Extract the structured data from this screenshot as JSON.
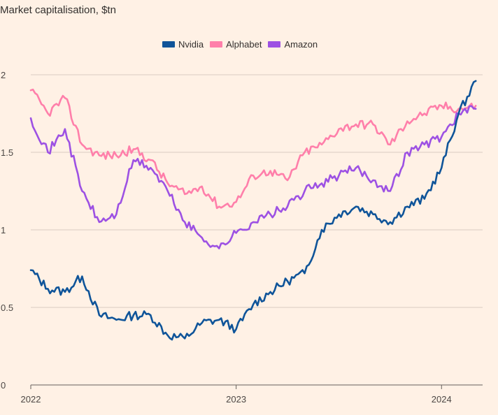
{
  "chart_data": {
    "type": "line",
    "title": "Market capitalisation, $tn",
    "xlabel": "",
    "ylabel": "",
    "ylim": [
      0,
      2
    ],
    "y_ticks": [
      {
        "value": 0,
        "label": "0"
      },
      {
        "value": 0.5,
        "label": "0.5"
      },
      {
        "value": 1,
        "label": "1"
      },
      {
        "value": 1.5,
        "label": "1.5"
      },
      {
        "value": 2,
        "label": "2"
      }
    ],
    "x_ticks": [
      {
        "value": "2022-01",
        "label": "2022"
      },
      {
        "value": "2023-01",
        "label": "2023"
      },
      {
        "value": "2024-01",
        "label": "2024"
      }
    ],
    "xlim": [
      "2022-01",
      "2024-03"
    ],
    "grid": true,
    "legend_position": "top-center",
    "x": [
      "2022-01",
      "2022-02",
      "2022-03",
      "2022-04",
      "2022-05",
      "2022-06",
      "2022-07",
      "2022-08",
      "2022-09",
      "2022-10",
      "2022-11",
      "2022-12",
      "2023-01",
      "2023-02",
      "2023-03",
      "2023-04",
      "2023-05",
      "2023-06",
      "2023-07",
      "2023-08",
      "2023-09",
      "2023-10",
      "2023-11",
      "2023-12",
      "2024-01",
      "2024-02",
      "2024-03"
    ],
    "series": [
      {
        "name": "Nvidia",
        "color": "#0F5499",
        "values": [
          0.74,
          0.62,
          0.6,
          0.7,
          0.45,
          0.42,
          0.45,
          0.45,
          0.32,
          0.3,
          0.4,
          0.42,
          0.36,
          0.52,
          0.6,
          0.67,
          0.72,
          1.0,
          1.1,
          1.15,
          1.1,
          1.05,
          1.15,
          1.2,
          1.4,
          1.75,
          1.96
        ]
      },
      {
        "name": "Alphabet",
        "color": "#FF7FAA",
        "values": [
          1.9,
          1.75,
          1.85,
          1.55,
          1.48,
          1.48,
          1.52,
          1.45,
          1.3,
          1.23,
          1.28,
          1.15,
          1.18,
          1.35,
          1.38,
          1.32,
          1.5,
          1.55,
          1.65,
          1.68,
          1.68,
          1.55,
          1.7,
          1.75,
          1.8,
          1.78,
          1.8
        ]
      },
      {
        "name": "Amazon",
        "color": "#9D51E3",
        "values": [
          1.72,
          1.5,
          1.65,
          1.25,
          1.05,
          1.1,
          1.45,
          1.4,
          1.25,
          1.05,
          0.95,
          0.88,
          0.98,
          1.05,
          1.1,
          1.15,
          1.25,
          1.3,
          1.35,
          1.4,
          1.32,
          1.25,
          1.5,
          1.55,
          1.6,
          1.75,
          1.78
        ]
      }
    ]
  }
}
